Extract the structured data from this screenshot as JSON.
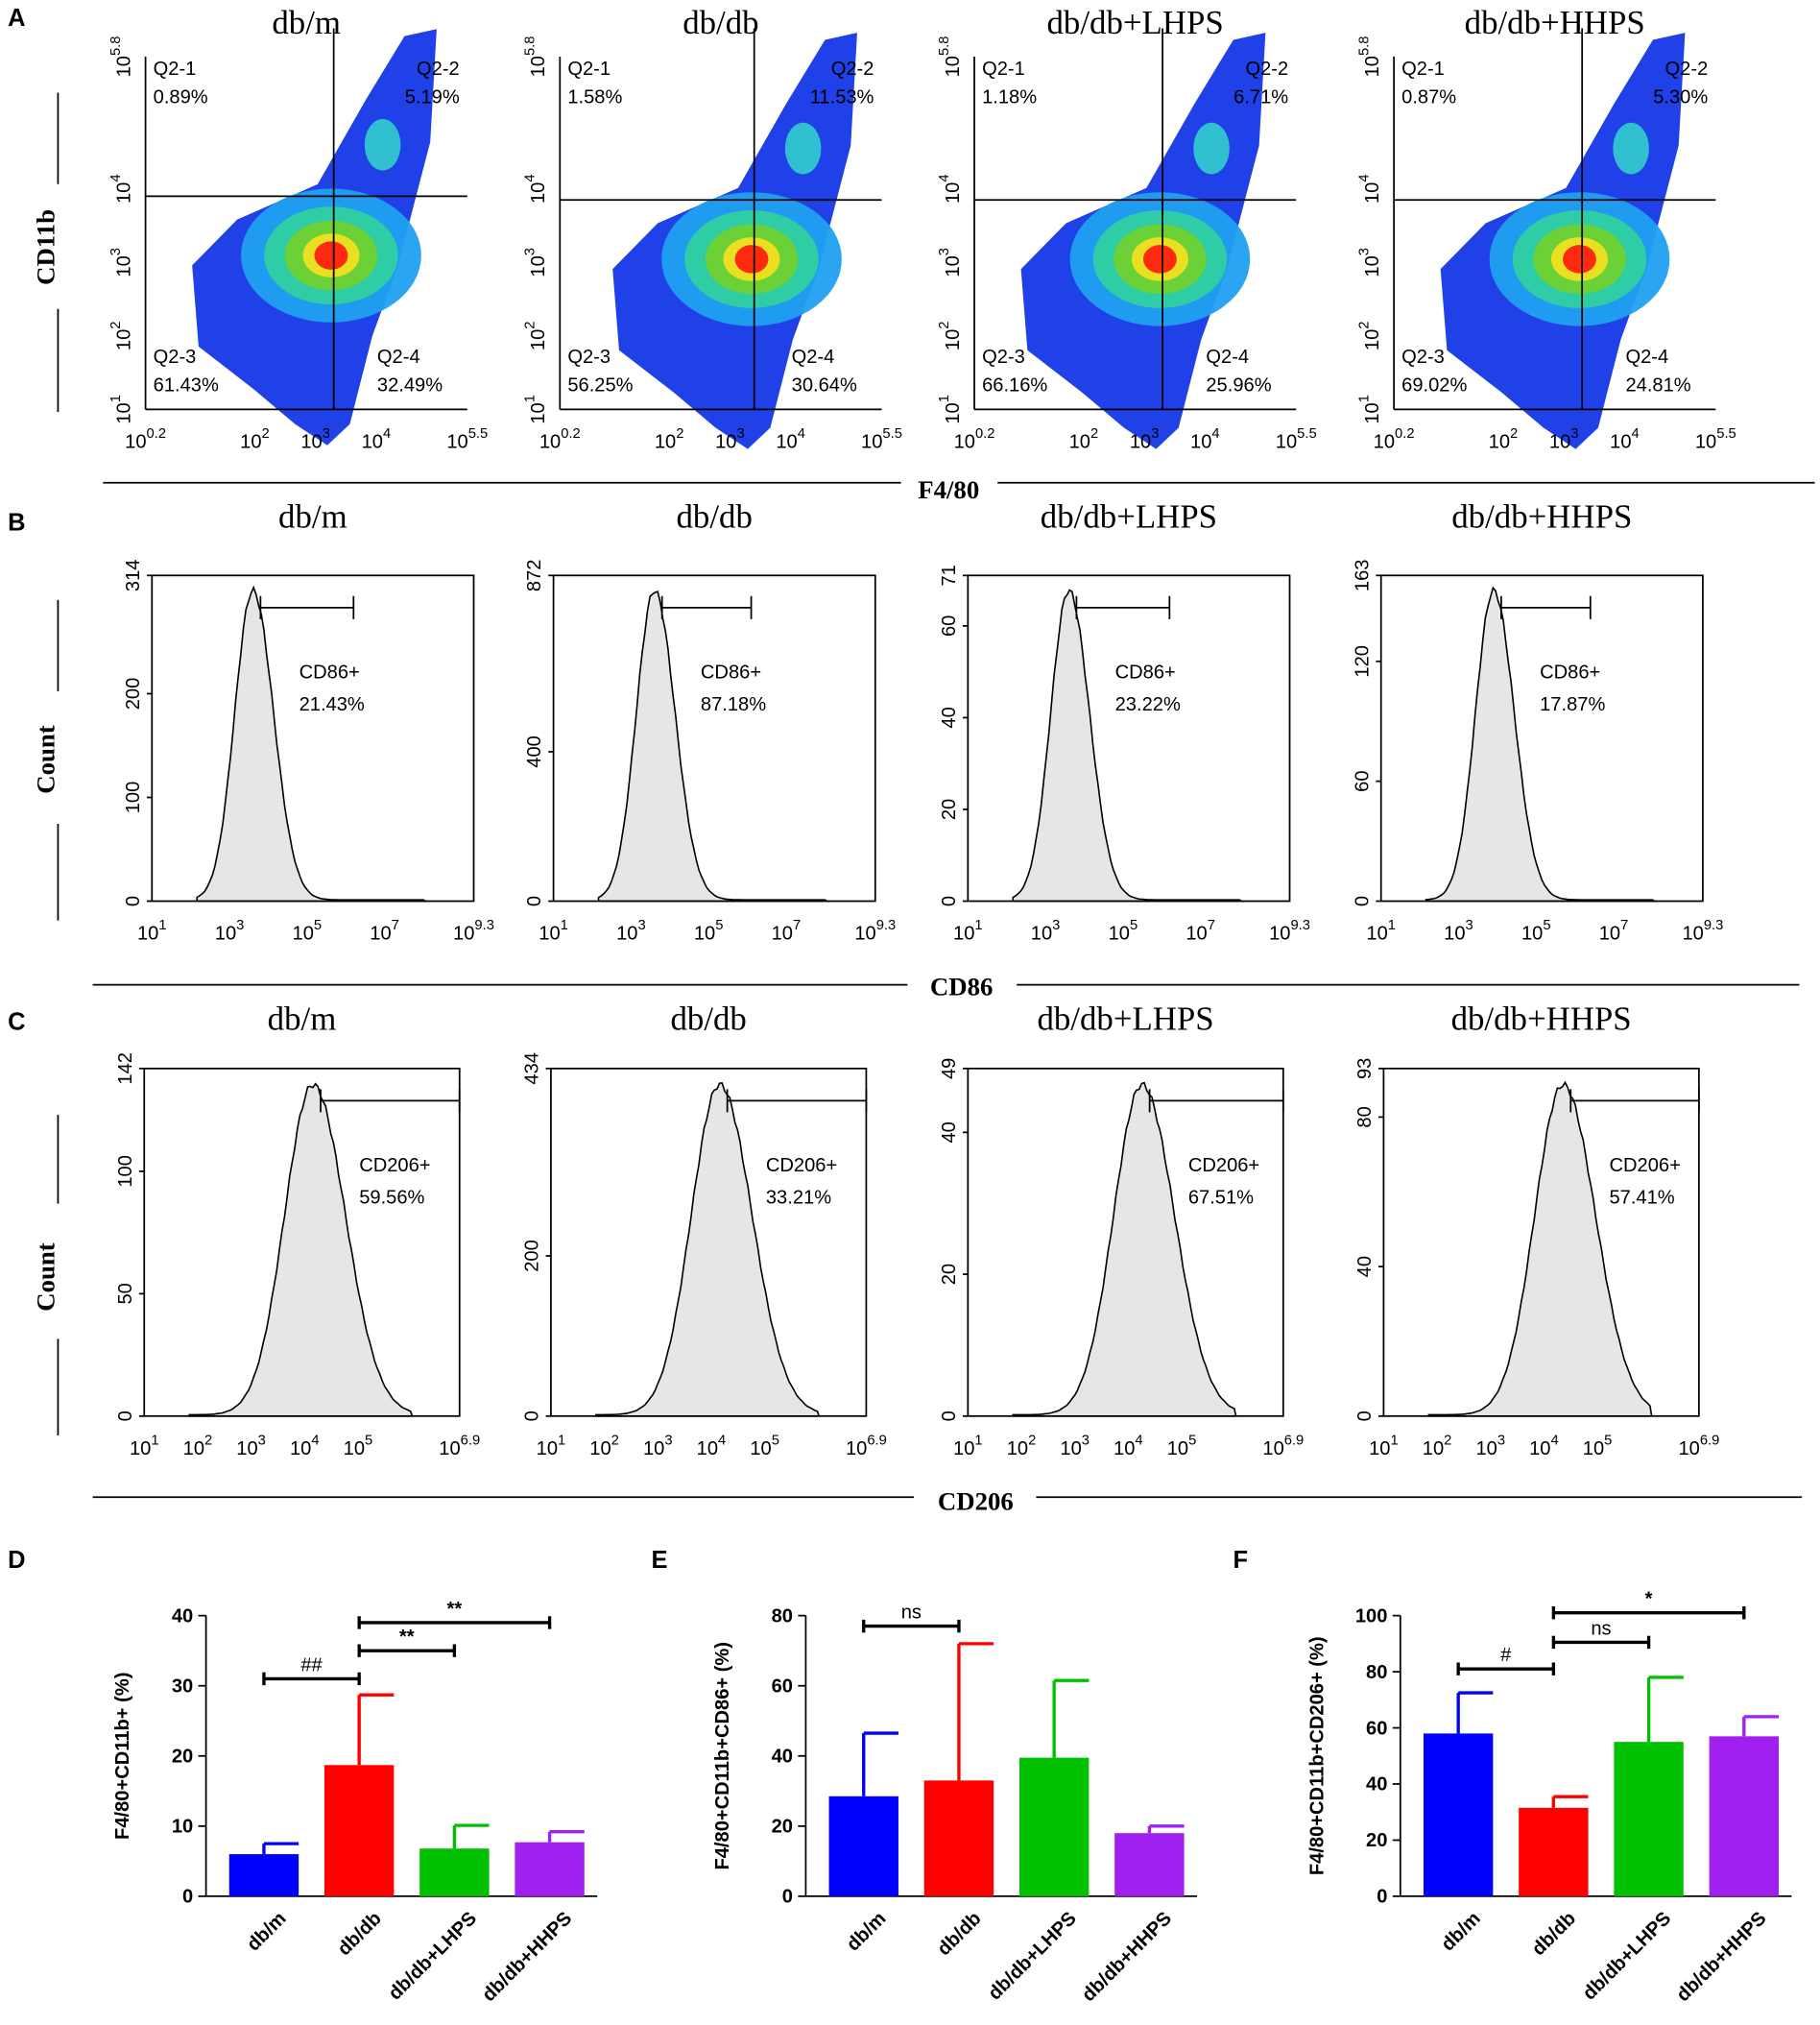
{
  "figure": {
    "panel_labels": [
      "A",
      "B",
      "C",
      "D",
      "E",
      "F"
    ],
    "group_labels": [
      "F4/80",
      "CD11b",
      "CD86",
      "Count",
      "CD206",
      "Count"
    ]
  },
  "chart_data": [
    {
      "type": "density",
      "title": "db/m",
      "log_base": 10,
      "xlim": [
        0.2,
        5.5
      ],
      "ylim": [
        1,
        5.8
      ],
      "xticks": [
        0.2,
        2,
        3,
        4,
        5.5
      ],
      "yticks": [
        1,
        2,
        3,
        4,
        5.8
      ],
      "gate": {
        "x": 3.3,
        "y": 3.9
      },
      "quadrants": [
        {
          "name": "Q2-1",
          "label": "0.89%"
        },
        {
          "name": "Q2-2",
          "label": "5.19%"
        },
        {
          "name": "Q2-3",
          "label": "61.43%"
        },
        {
          "name": "Q2-4",
          "label": "32.49%"
        }
      ]
    },
    {
      "type": "density",
      "title": "db/db",
      "log_base": 10,
      "xlim": [
        0.2,
        5.5
      ],
      "ylim": [
        1,
        5.8
      ],
      "xticks": [
        0.2,
        2,
        3,
        4,
        5.5
      ],
      "yticks": [
        1,
        2,
        3,
        4,
        5.8
      ],
      "gate": {
        "x": 3.4,
        "y": 3.85
      },
      "quadrants": [
        {
          "name": "Q2-1",
          "label": "1.58%"
        },
        {
          "name": "Q2-2",
          "label": "11.53%"
        },
        {
          "name": "Q2-3",
          "label": "56.25%"
        },
        {
          "name": "Q2-4",
          "label": "30.64%"
        }
      ]
    },
    {
      "type": "density",
      "title": "db/db+LHPS",
      "log_base": 10,
      "xlim": [
        0.2,
        5.5
      ],
      "ylim": [
        1,
        5.8
      ],
      "xticks": [
        0.2,
        2,
        3,
        4,
        5.5
      ],
      "yticks": [
        1,
        2,
        3,
        4,
        5.8
      ],
      "gate": {
        "x": 3.3,
        "y": 3.85
      },
      "quadrants": [
        {
          "name": "Q2-1",
          "label": "1.18%"
        },
        {
          "name": "Q2-2",
          "label": "6.71%"
        },
        {
          "name": "Q2-3",
          "label": "66.16%"
        },
        {
          "name": "Q2-4",
          "label": "25.96%"
        }
      ]
    },
    {
      "type": "density",
      "title": "db/db+HHPS",
      "log_base": 10,
      "xlim": [
        0.2,
        5.5
      ],
      "ylim": [
        1,
        5.8
      ],
      "xticks": [
        0.2,
        2,
        3,
        4,
        5.5
      ],
      "yticks": [
        1,
        2,
        3,
        4,
        5.8
      ],
      "gate": {
        "x": 3.3,
        "y": 3.85
      },
      "quadrants": [
        {
          "name": "Q2-1",
          "label": "0.87%"
        },
        {
          "name": "Q2-2",
          "label": "5.30%"
        },
        {
          "name": "Q2-3",
          "label": "69.02%"
        },
        {
          "name": "Q2-4",
          "label": "24.81%"
        }
      ]
    },
    {
      "type": "histogram",
      "title": "db/m",
      "log_base": 10,
      "xlim": [
        1,
        9.3
      ],
      "xticks": [
        1,
        3,
        5,
        7,
        9.3
      ],
      "ylim": [
        0,
        314
      ],
      "yticks": [
        0,
        100,
        200,
        314
      ],
      "gate": [
        3.8,
        6.2
      ],
      "gate_label": "CD86+",
      "percent": "21.43%"
    },
    {
      "type": "histogram",
      "title": "db/db",
      "log_base": 10,
      "xlim": [
        1,
        9.3
      ],
      "xticks": [
        1,
        3,
        5,
        7,
        9.3
      ],
      "ylim": [
        0,
        872
      ],
      "yticks": [
        0,
        400,
        872
      ],
      "gate": [
        3.8,
        6.1
      ],
      "gate_label": "CD86+",
      "percent": "87.18%"
    },
    {
      "type": "histogram",
      "title": "db/db+LHPS",
      "log_base": 10,
      "xlim": [
        1,
        9.3
      ],
      "xticks": [
        1,
        3,
        5,
        7,
        9.3
      ],
      "ylim": [
        0,
        71
      ],
      "yticks": [
        0,
        20,
        40,
        60,
        71
      ],
      "gate": [
        3.8,
        6.2
      ],
      "gate_label": "CD86+",
      "percent": "23.22%"
    },
    {
      "type": "histogram",
      "title": "db/db+HHPS",
      "log_base": 10,
      "xlim": [
        1,
        9.3
      ],
      "xticks": [
        1,
        3,
        5,
        7,
        9.3
      ],
      "ylim": [
        0,
        163
      ],
      "yticks": [
        0,
        60,
        120,
        163
      ],
      "gate": [
        4.1,
        6.4
      ],
      "gate_label": "CD86+",
      "percent": "17.87%"
    },
    {
      "type": "histogram",
      "title": "db/m",
      "log_base": 10,
      "xlim": [
        1,
        6.9
      ],
      "xticks": [
        1,
        2,
        3,
        4,
        5,
        6.9
      ],
      "ylim": [
        0,
        142
      ],
      "yticks": [
        0,
        50,
        100,
        142
      ],
      "gate": [
        4.3,
        6.9
      ],
      "gate_label": "CD206+",
      "percent": "59.56%"
    },
    {
      "type": "histogram",
      "title": "db/db",
      "log_base": 10,
      "xlim": [
        1,
        6.9
      ],
      "xticks": [
        1,
        2,
        3,
        4,
        5,
        6.9
      ],
      "ylim": [
        0,
        434
      ],
      "yticks": [
        0,
        200,
        434
      ],
      "gate": [
        4.3,
        6.9
      ],
      "gate_label": "CD206+",
      "percent": "33.21%"
    },
    {
      "type": "histogram",
      "title": "db/db+LHPS",
      "log_base": 10,
      "xlim": [
        1,
        6.9
      ],
      "xticks": [
        1,
        2,
        3,
        4,
        5,
        6.9
      ],
      "ylim": [
        0,
        49
      ],
      "yticks": [
        0,
        20,
        40,
        49
      ],
      "gate": [
        4.4,
        6.9
      ],
      "gate_label": "CD206+",
      "percent": "67.51%"
    },
    {
      "type": "histogram",
      "title": "db/db+HHPS",
      "log_base": 10,
      "xlim": [
        1,
        6.9
      ],
      "xticks": [
        1,
        2,
        3,
        4,
        5,
        6.9
      ],
      "ylim": [
        0,
        93
      ],
      "yticks": [
        0,
        40,
        80,
        93
      ],
      "gate": [
        4.5,
        6.9
      ],
      "gate_label": "CD206+",
      "percent": "57.41%"
    },
    {
      "type": "bar",
      "ylabel": "F4/80+CD11b+ (%)",
      "categories": [
        "db/m",
        "db/db",
        "db/db+LHPS",
        "db/db+HHPS"
      ],
      "values": [
        6,
        18.7,
        6.8,
        7.7
      ],
      "errors": [
        1.5,
        10,
        3.3,
        1.5
      ],
      "colors": [
        "#0000ff",
        "#ff0000",
        "#00c000",
        "#a020f0"
      ],
      "ylim": [
        0,
        40
      ],
      "yticks": [
        0,
        10,
        20,
        30,
        40
      ],
      "annotations": [
        {
          "text": "##",
          "from": 0,
          "to": 1,
          "y": 31
        },
        {
          "text": "**",
          "from": 1,
          "to": 2,
          "y": 35
        },
        {
          "text": "**",
          "from": 1,
          "to": 3,
          "y": 39
        }
      ]
    },
    {
      "type": "bar",
      "ylabel": "F4/80+CD11b+CD86+ (%)",
      "categories": [
        "db/m",
        "db/db",
        "db/db+LHPS",
        "db/db+HHPS"
      ],
      "values": [
        28.5,
        33,
        39.5,
        18
      ],
      "errors": [
        18,
        39,
        22,
        2
      ],
      "colors": [
        "#0000ff",
        "#ff0000",
        "#00c000",
        "#a020f0"
      ],
      "ylim": [
        0,
        80
      ],
      "yticks": [
        0,
        20,
        40,
        60,
        80
      ],
      "annotations": [
        {
          "text": "ns",
          "from": 0,
          "to": 1,
          "y": 77
        }
      ]
    },
    {
      "type": "bar",
      "ylabel": "F4/80+CD11b+CD206+ (%)",
      "categories": [
        "db/m",
        "db/db",
        "db/db+LHPS",
        "db/db+HHPS"
      ],
      "values": [
        58,
        31.5,
        55,
        57
      ],
      "errors": [
        14.5,
        4,
        23,
        7
      ],
      "colors": [
        "#0000ff",
        "#ff0000",
        "#00c000",
        "#a020f0"
      ],
      "ylim": [
        0,
        100
      ],
      "yticks": [
        0,
        20,
        40,
        60,
        80,
        100
      ],
      "annotations": [
        {
          "text": "#",
          "from": 0,
          "to": 1,
          "y": 81
        },
        {
          "text": "ns",
          "from": 1,
          "to": 2,
          "y": 90.5
        },
        {
          "text": "*",
          "from": 1,
          "to": 3,
          "y": 101
        }
      ]
    }
  ]
}
